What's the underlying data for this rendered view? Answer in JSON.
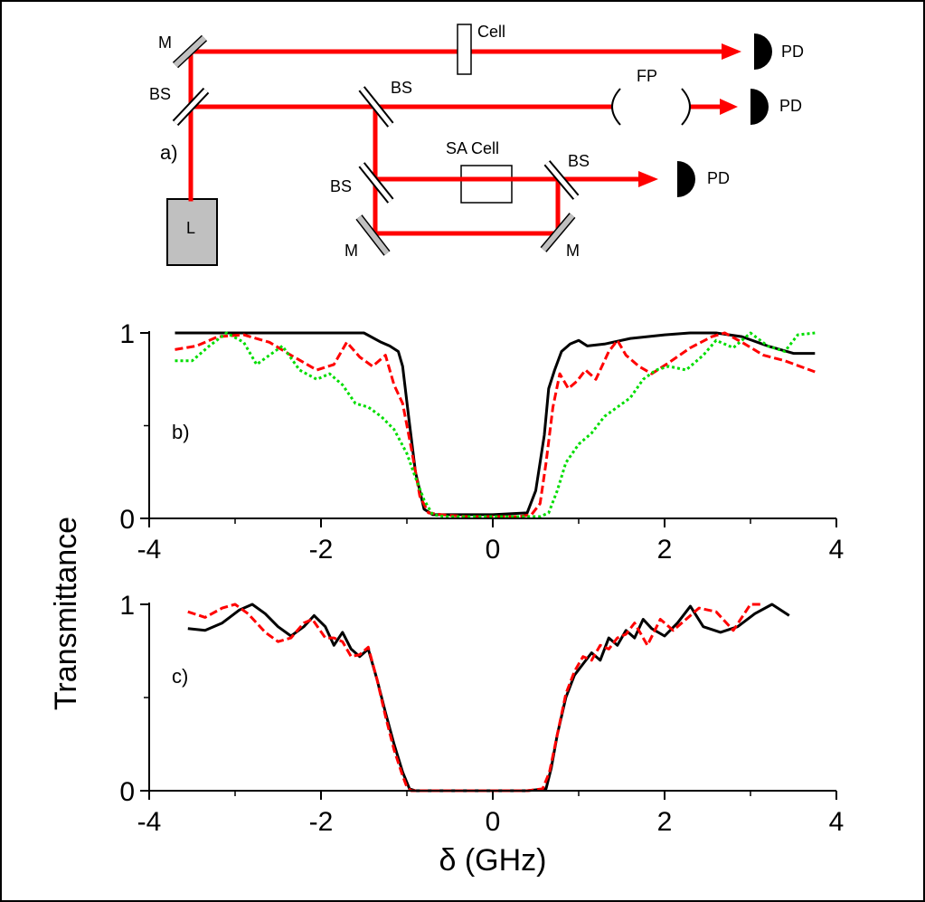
{
  "colors": {
    "beam": "#ff0000",
    "laser_box": "#c0c0c0",
    "mirror": "#c0c0c0",
    "black": "#000000",
    "red": "#ff0000",
    "green": "#00dd00"
  },
  "setup": {
    "panel_label": "a)",
    "laser": "L",
    "mirror_top": "M",
    "bs_left": "BS",
    "cell": "Cell",
    "pd_top": "PD",
    "bs_mid": "BS",
    "fp": "FP",
    "pd_mid": "PD",
    "sa_cell": "SA Cell",
    "bs_lower_left": "BS",
    "bs_lower_right": "BS",
    "pd_lower": "PD",
    "mirror_lower_left": "M",
    "mirror_lower_right": "M"
  },
  "y_axis_label": "Transmittance",
  "chart_data": [
    {
      "type": "line",
      "panel_label": "b)",
      "xlabel": "",
      "ylabel": "Transmittance",
      "xlim": [
        -4,
        4
      ],
      "ylim": [
        0,
        1
      ],
      "x_ticks": [
        "-4",
        "-2",
        "0",
        "2",
        "4"
      ],
      "y_ticks": [
        "0",
        "1"
      ],
      "series": [
        {
          "color": "#000000",
          "dash": "",
          "x": [
            -3.7,
            -3.3,
            -2.8,
            -2.3,
            -1.9,
            -1.5,
            -1.3,
            -1.2,
            -1.1,
            -1.05,
            -0.98,
            -0.9,
            -0.8,
            -0.7,
            -0.5,
            0,
            0.4,
            0.5,
            0.6,
            0.65,
            0.72,
            0.8,
            0.9,
            1.0,
            1.1,
            1.3,
            1.6,
            2.0,
            2.3,
            2.6,
            2.9,
            3.2,
            3.5,
            3.75
          ],
          "y": [
            1.0,
            1.0,
            1.0,
            1.0,
            1.0,
            1.0,
            0.95,
            0.93,
            0.9,
            0.82,
            0.55,
            0.25,
            0.05,
            0.02,
            0.02,
            0.02,
            0.03,
            0.15,
            0.45,
            0.7,
            0.8,
            0.9,
            0.94,
            0.96,
            0.93,
            0.94,
            0.97,
            0.99,
            1.0,
            1.0,
            0.98,
            0.93,
            0.89,
            0.89
          ]
        },
        {
          "color": "#ff0000",
          "dash": "9,4",
          "x": [
            -3.7,
            -3.45,
            -3.2,
            -2.9,
            -2.6,
            -2.35,
            -2.05,
            -1.85,
            -1.7,
            -1.55,
            -1.4,
            -1.25,
            -1.15,
            -1.05,
            -0.95,
            -0.85,
            -0.75,
            -0.6,
            -0.3,
            0,
            0.3,
            0.45,
            0.55,
            0.62,
            0.7,
            0.78,
            0.88,
            0.98,
            1.08,
            1.2,
            1.35,
            1.45,
            1.55,
            1.7,
            1.85,
            2.05,
            2.3,
            2.55,
            2.7,
            2.9,
            3.15,
            3.4,
            3.75
          ],
          "y": [
            0.91,
            0.93,
            0.98,
            0.99,
            0.95,
            0.88,
            0.8,
            0.83,
            0.95,
            0.87,
            0.82,
            0.88,
            0.72,
            0.62,
            0.38,
            0.12,
            0.03,
            0.02,
            0.01,
            0.01,
            0.01,
            0.02,
            0.08,
            0.3,
            0.6,
            0.78,
            0.7,
            0.74,
            0.8,
            0.75,
            0.9,
            0.96,
            0.88,
            0.82,
            0.78,
            0.84,
            0.92,
            0.98,
            1.0,
            0.95,
            0.88,
            0.85,
            0.79
          ]
        },
        {
          "color": "#00dd00",
          "dash": "3,3",
          "x": [
            -3.7,
            -3.5,
            -3.3,
            -3.1,
            -2.9,
            -2.75,
            -2.6,
            -2.45,
            -2.25,
            -2.05,
            -1.9,
            -1.75,
            -1.6,
            -1.45,
            -1.3,
            -1.15,
            -1.0,
            -0.9,
            -0.8,
            -0.7,
            -0.55,
            -0.3,
            0,
            0.3,
            0.45,
            0.55,
            0.65,
            0.75,
            0.85,
            1.0,
            1.15,
            1.3,
            1.45,
            1.6,
            1.75,
            1.9,
            2.05,
            2.25,
            2.45,
            2.6,
            2.8,
            3.0,
            3.2,
            3.4,
            3.55,
            3.75
          ],
          "y": [
            0.85,
            0.85,
            0.93,
            1.0,
            0.95,
            0.83,
            0.88,
            0.93,
            0.8,
            0.75,
            0.78,
            0.72,
            0.62,
            0.6,
            0.55,
            0.48,
            0.35,
            0.22,
            0.1,
            0.02,
            0.01,
            0.01,
            0.01,
            0.01,
            0.01,
            0.01,
            0.03,
            0.15,
            0.3,
            0.4,
            0.46,
            0.55,
            0.6,
            0.65,
            0.75,
            0.8,
            0.82,
            0.8,
            0.88,
            0.96,
            0.92,
            1.0,
            0.93,
            0.9,
            0.99,
            1.0
          ]
        }
      ]
    },
    {
      "type": "line",
      "panel_label": "c)",
      "xlabel": "δ (GHz)",
      "ylabel": "Transmittance",
      "xlim": [
        -4,
        4
      ],
      "ylim": [
        0,
        1
      ],
      "x_ticks": [
        "-4",
        "-2",
        "0",
        "2",
        "4"
      ],
      "y_ticks": [
        "0",
        "1"
      ],
      "series": [
        {
          "color": "#000000",
          "dash": "",
          "x": [
            -3.55,
            -3.35,
            -3.15,
            -2.95,
            -2.8,
            -2.65,
            -2.5,
            -2.35,
            -2.2,
            -2.08,
            -1.95,
            -1.85,
            -1.75,
            -1.65,
            -1.55,
            -1.45,
            -1.35,
            -1.25,
            -1.15,
            -1.05,
            -0.97,
            -0.9,
            -0.6,
            0,
            0.4,
            0.62,
            0.68,
            0.75,
            0.85,
            0.95,
            1.05,
            1.15,
            1.25,
            1.35,
            1.45,
            1.55,
            1.65,
            1.75,
            1.85,
            2.0,
            2.15,
            2.3,
            2.45,
            2.65,
            2.85,
            3.05,
            3.25,
            3.45
          ],
          "y": [
            0.87,
            0.86,
            0.9,
            0.97,
            1.0,
            0.95,
            0.88,
            0.83,
            0.88,
            0.94,
            0.88,
            0.78,
            0.85,
            0.76,
            0.72,
            0.76,
            0.6,
            0.42,
            0.25,
            0.1,
            0.01,
            0.0,
            0.0,
            0.0,
            0.0,
            0.01,
            0.12,
            0.3,
            0.5,
            0.62,
            0.68,
            0.74,
            0.7,
            0.82,
            0.78,
            0.86,
            0.82,
            0.92,
            0.87,
            0.83,
            0.9,
            0.99,
            0.88,
            0.85,
            0.88,
            0.95,
            1.0,
            0.94
          ]
        },
        {
          "color": "#ff0000",
          "dash": "9,4",
          "x": [
            -3.55,
            -3.35,
            -3.15,
            -3.0,
            -2.85,
            -2.65,
            -2.5,
            -2.35,
            -2.2,
            -2.1,
            -1.95,
            -1.85,
            -1.75,
            -1.65,
            -1.55,
            -1.45,
            -1.35,
            -1.25,
            -1.15,
            -1.05,
            -1.0,
            -0.95,
            -0.6,
            0,
            0.4,
            0.58,
            0.66,
            0.75,
            0.85,
            0.95,
            1.05,
            1.15,
            1.25,
            1.35,
            1.45,
            1.55,
            1.65,
            1.8,
            1.95,
            2.1,
            2.25,
            2.4,
            2.6,
            2.8,
            3.0,
            3.15
          ],
          "y": [
            0.96,
            0.93,
            0.98,
            1.0,
            0.95,
            0.85,
            0.8,
            0.82,
            0.9,
            0.92,
            0.82,
            0.82,
            0.8,
            0.72,
            0.73,
            0.77,
            0.6,
            0.4,
            0.22,
            0.08,
            0.02,
            0.0,
            0.0,
            0.0,
            0.0,
            0.01,
            0.1,
            0.3,
            0.52,
            0.64,
            0.72,
            0.7,
            0.78,
            0.76,
            0.82,
            0.84,
            0.9,
            0.78,
            0.92,
            0.86,
            0.92,
            0.98,
            0.96,
            0.86,
            1.0,
            1.0
          ]
        }
      ]
    }
  ]
}
